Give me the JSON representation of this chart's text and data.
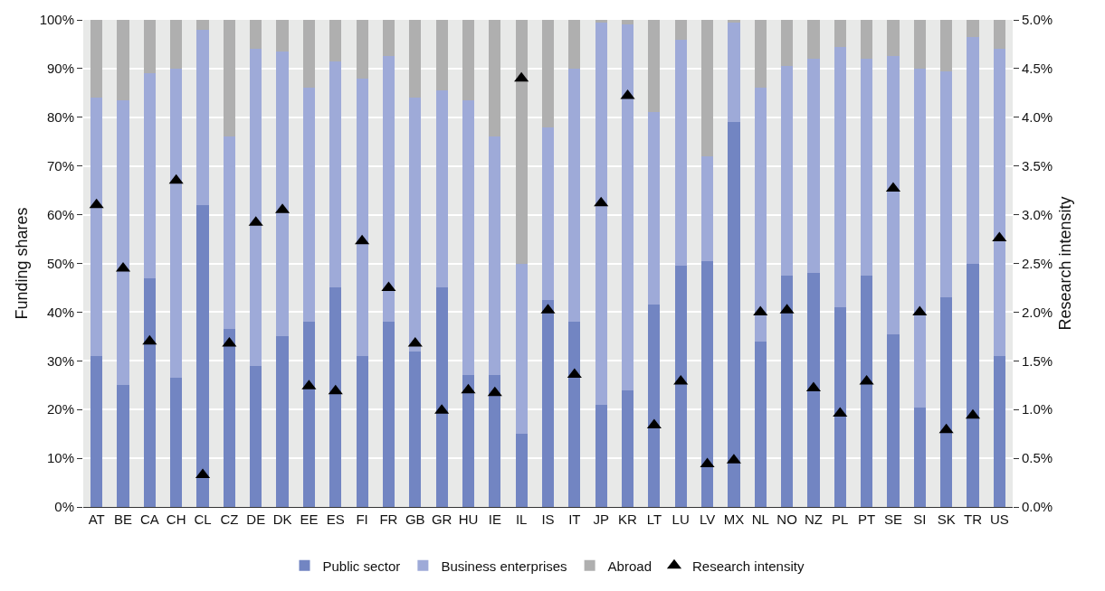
{
  "chart_data": {
    "type": "bar",
    "stacked": true,
    "ylabel": "Funding shares",
    "y2label": "Research intensity",
    "categories": [
      "AT",
      "BE",
      "CA",
      "CH",
      "CL",
      "CZ",
      "DE",
      "DK",
      "EE",
      "ES",
      "FI",
      "FR",
      "GB",
      "GR",
      "HU",
      "IE",
      "IL",
      "IS",
      "IT",
      "JP",
      "KR",
      "LT",
      "LU",
      "LV",
      "MX",
      "NL",
      "NO",
      "NZ",
      "PL",
      "PT",
      "SE",
      "SI",
      "SK",
      "TR",
      "US"
    ],
    "series": [
      {
        "name": "Public sector",
        "color": "#7285c2",
        "values": [
          31,
          25,
          47,
          26.5,
          62,
          36.5,
          29,
          35,
          38,
          45,
          31,
          38,
          32,
          45,
          27,
          27,
          15,
          42.5,
          38,
          21,
          24,
          41.5,
          49.5,
          50.5,
          79,
          34,
          47.5,
          48,
          41,
          47.5,
          35.5,
          20.5,
          43,
          50,
          31
        ]
      },
      {
        "name": "Business enterprises",
        "color": "#9eaad8",
        "values": [
          53,
          58.5,
          42,
          63.5,
          36,
          39.5,
          65,
          58.5,
          48,
          46.5,
          57,
          54.5,
          52,
          40.5,
          56.5,
          49,
          35,
          35.5,
          52,
          78.5,
          75,
          39.5,
          46.5,
          21.5,
          20.5,
          52,
          43,
          44,
          53.5,
          44.5,
          57,
          69.5,
          46.5,
          46.5,
          63
        ]
      },
      {
        "name": "Abroad",
        "color": "#afafaf",
        "values": [
          16,
          16.5,
          11,
          10,
          2,
          24,
          6,
          6.5,
          14,
          8.5,
          12,
          7.5,
          16,
          14.5,
          16.5,
          24,
          50,
          22,
          10,
          0.5,
          1,
          19,
          4,
          28,
          0.5,
          14,
          9.5,
          8,
          5.5,
          8,
          7.5,
          10,
          10.5,
          3.5,
          6
        ]
      },
      {
        "name": "Research intensity",
        "type": "scatter",
        "axis": "y2",
        "marker": "triangle",
        "color": "#000000",
        "values": [
          3.1,
          2.45,
          1.7,
          3.35,
          0.33,
          1.68,
          2.92,
          3.05,
          1.24,
          1.19,
          2.73,
          2.25,
          1.68,
          0.99,
          1.2,
          1.17,
          4.4,
          2.02,
          1.36,
          3.12,
          4.22,
          0.84,
          1.29,
          0.44,
          0.48,
          2.0,
          2.02,
          1.22,
          0.96,
          1.29,
          3.27,
          2.0,
          0.79,
          0.94,
          2.76
        ]
      }
    ],
    "ylim": [
      0,
      100
    ],
    "yticks": [
      {
        "value": 0,
        "label": "0%"
      },
      {
        "value": 10,
        "label": "10%"
      },
      {
        "value": 20,
        "label": "20%"
      },
      {
        "value": 30,
        "label": "30%"
      },
      {
        "value": 40,
        "label": "40%"
      },
      {
        "value": 50,
        "label": "50%"
      },
      {
        "value": 60,
        "label": "60%"
      },
      {
        "value": 70,
        "label": "70%"
      },
      {
        "value": 80,
        "label": "80%"
      },
      {
        "value": 90,
        "label": "90%"
      },
      {
        "value": 100,
        "label": "100%"
      }
    ],
    "y2lim": [
      0,
      5
    ],
    "y2ticks": [
      {
        "value": 0,
        "label": "0.0%"
      },
      {
        "value": 0.5,
        "label": "0.5%"
      },
      {
        "value": 1,
        "label": "1.0%"
      },
      {
        "value": 1.5,
        "label": "1.5%"
      },
      {
        "value": 2,
        "label": "2.0%"
      },
      {
        "value": 2.5,
        "label": "2.5%"
      },
      {
        "value": 3,
        "label": "3.0%"
      },
      {
        "value": 3.5,
        "label": "3.5%"
      },
      {
        "value": 4,
        "label": "4.0%"
      },
      {
        "value": 4.5,
        "label": "4.5%"
      },
      {
        "value": 5,
        "label": "5.0%"
      }
    ],
    "grid": "y",
    "legend": "bottom"
  }
}
